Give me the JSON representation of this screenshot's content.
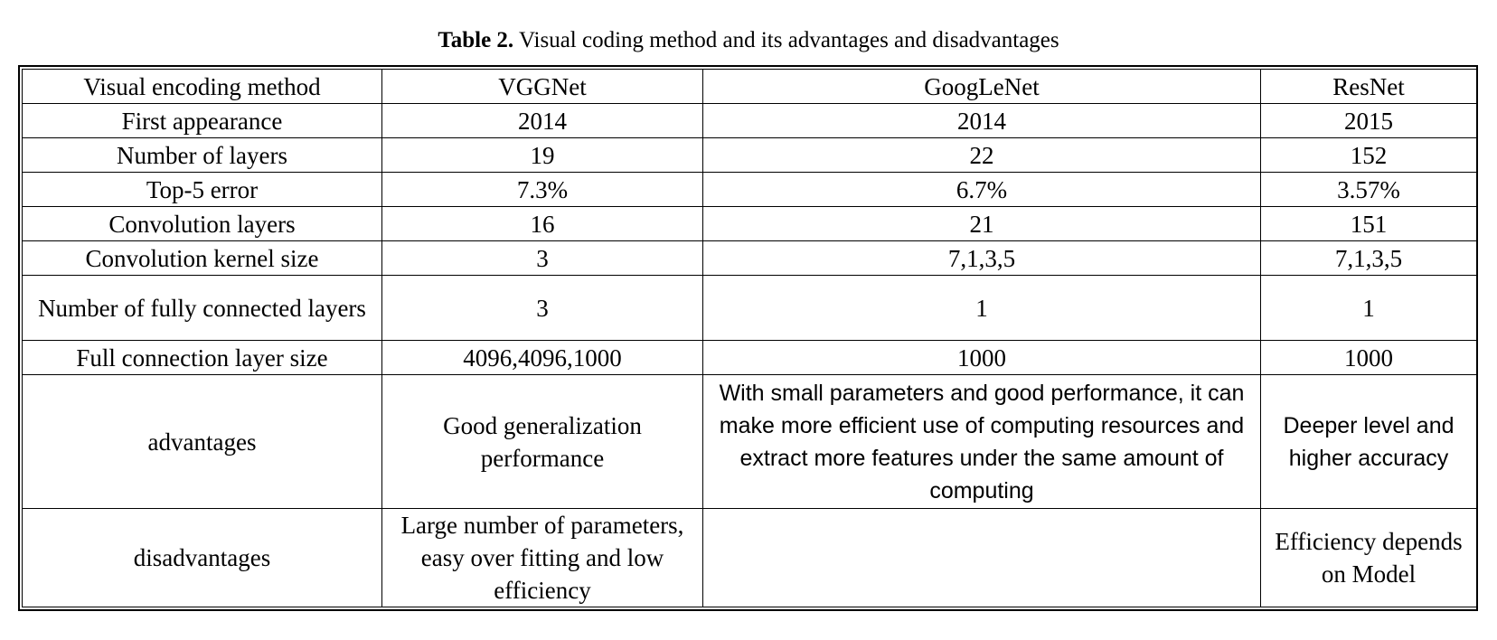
{
  "caption": {
    "label": "Table 2.",
    "text": " Visual coding method and its advantages and disadvantages"
  },
  "table": {
    "header": {
      "row_label": "Visual encoding method",
      "columns": [
        "VGGNet",
        "GoogLeNet",
        "ResNet"
      ]
    },
    "rows": [
      {
        "label": "First appearance",
        "values": [
          "2014",
          "2014",
          "2015"
        ]
      },
      {
        "label": "Number of layers",
        "values": [
          "19",
          "22",
          "152"
        ]
      },
      {
        "label": "Top-5 error",
        "values": [
          "7.3%",
          "6.7%",
          "3.57%"
        ]
      },
      {
        "label": "Convolution layers",
        "values": [
          "16",
          "21",
          "151"
        ]
      },
      {
        "label": "Convolution kernel size",
        "values": [
          "3",
          "7,1,3,5",
          "7,1,3,5"
        ]
      },
      {
        "label": "Number of fully connected layers",
        "values": [
          "3",
          "1",
          "1"
        ]
      },
      {
        "label": "Full connection layer size",
        "values": [
          "4096,4096,1000",
          "1000",
          "1000"
        ]
      },
      {
        "label": "advantages",
        "values": [
          "Good generalization performance",
          "With small parameters and good performance, it can make more efficient use of computing resources and extract more features under the same amount of computing",
          "Deeper level and higher accuracy"
        ]
      },
      {
        "label": "disadvantages",
        "values": [
          "Large number of parameters, easy over fitting and low efficiency",
          "",
          "Efficiency depends on Model"
        ]
      }
    ]
  }
}
